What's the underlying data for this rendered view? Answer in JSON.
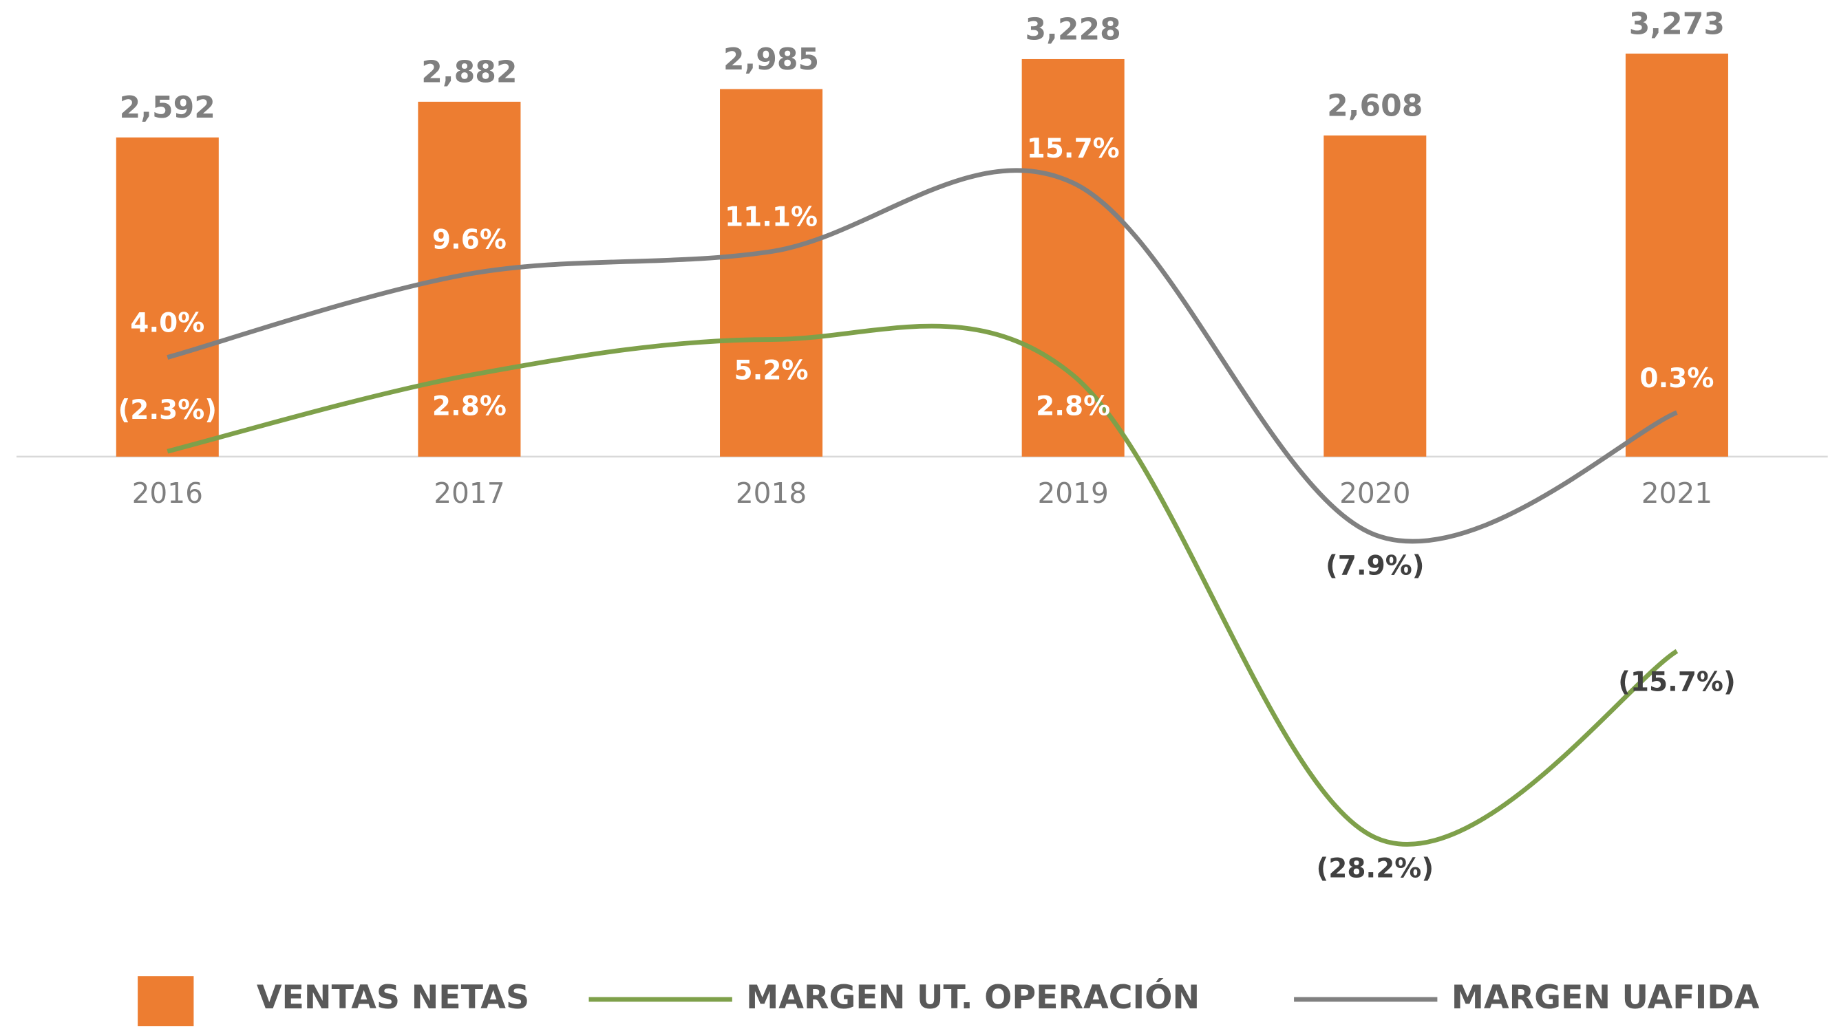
{
  "chart_data": {
    "type": "bar",
    "categories": [
      "2016",
      "2017",
      "2018",
      "2019",
      "2020",
      "2021"
    ],
    "ylim": [
      0,
      3500
    ],
    "y2lim": [
      -30,
      26.25
    ],
    "series": [
      {
        "name": "VENTAS NETAS",
        "type": "bar",
        "color": "#ed7d31",
        "values": [
          2592,
          2882,
          2985,
          3228,
          2608,
          3273
        ],
        "value_labels": [
          "2,592",
          "2,882",
          "2,985",
          "3,228",
          "2,608",
          "3,273"
        ]
      },
      {
        "name": "MARGEN UT. OPERACIÓN",
        "type": "line",
        "axis": "y2",
        "color": "#7ea04a",
        "values": [
          -2.3,
          2.8,
          5.2,
          2.8,
          -28.2,
          -15.7
        ],
        "value_labels": [
          "(2.3%)",
          "2.8%",
          "5.2%",
          "2.8%",
          "(28.2%)",
          "(15.7%)"
        ]
      },
      {
        "name": "MARGEN UAFIDA",
        "type": "line",
        "axis": "y2",
        "color": "#808080",
        "values": [
          4.0,
          9.6,
          11.1,
          15.7,
          -7.9,
          0.3
        ],
        "value_labels": [
          "4.0%",
          "9.6%",
          "11.1%",
          "15.7%",
          "(7.9%)",
          "0.3%"
        ]
      }
    ],
    "legend": "bottom"
  }
}
